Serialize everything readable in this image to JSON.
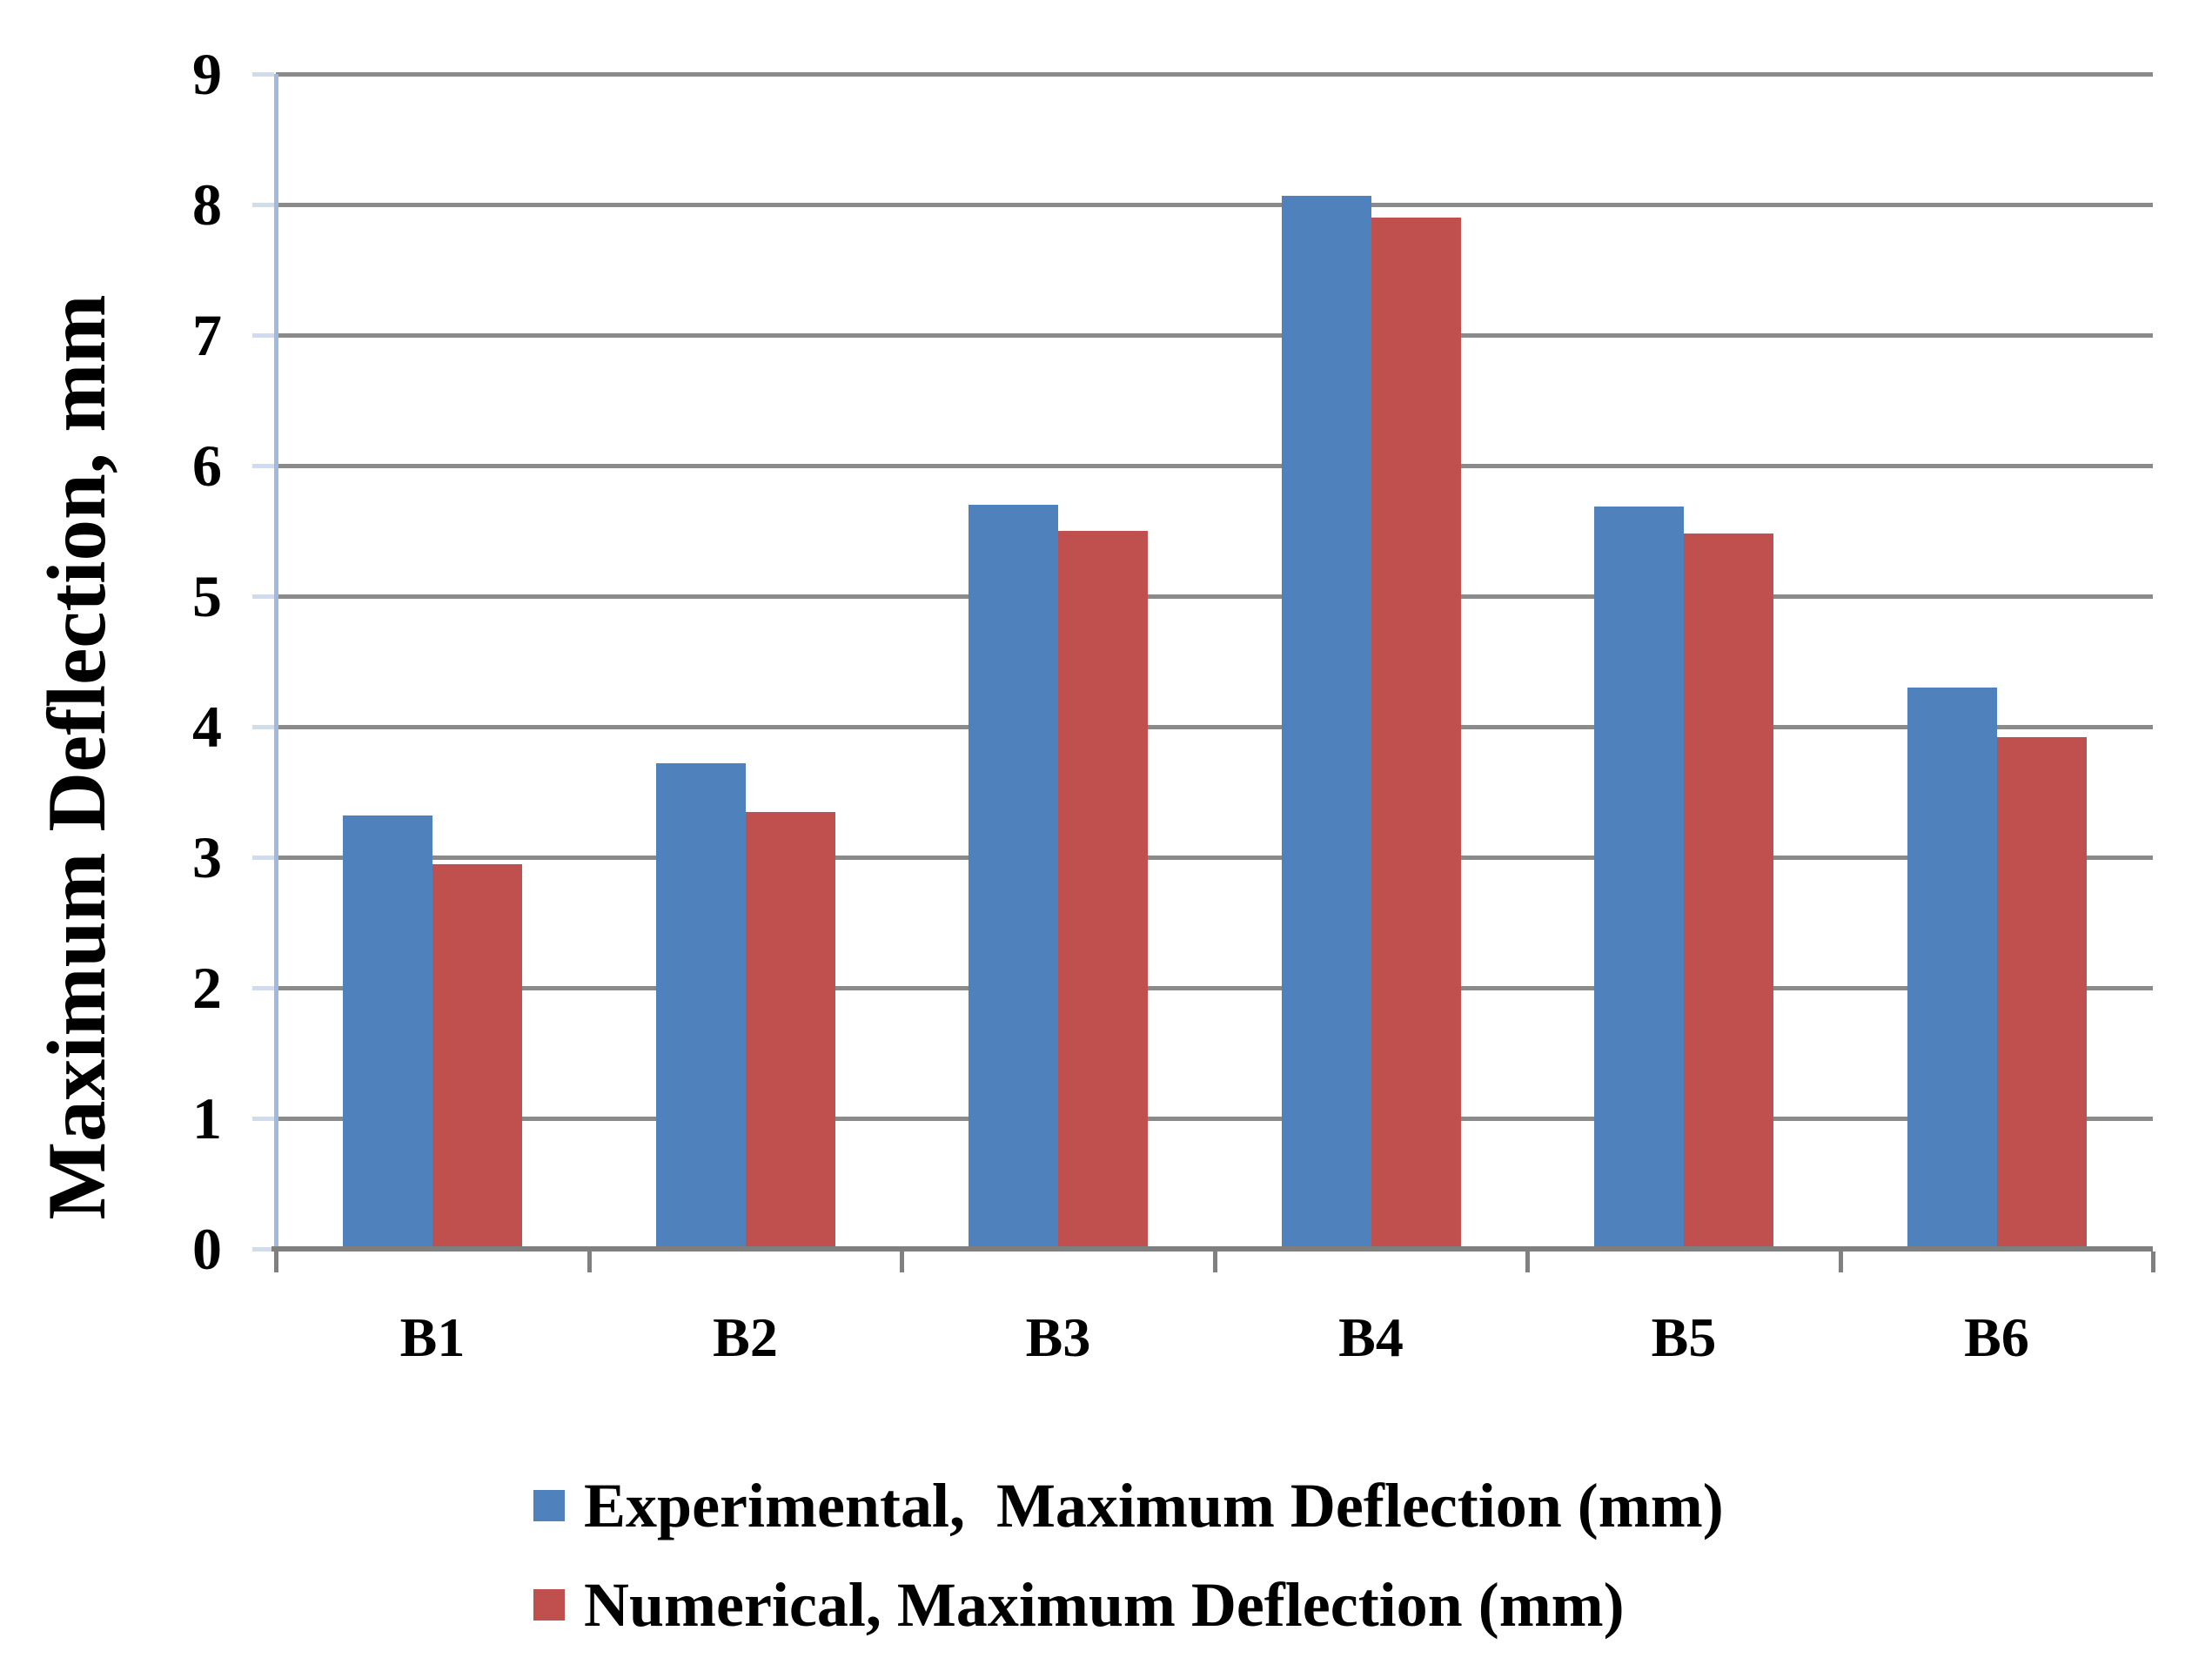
{
  "chart_data": {
    "type": "bar",
    "title": "",
    "xlabel": "",
    "ylabel": "Maximum Deflection, mm",
    "categories": [
      "B1",
      "B2",
      "B3",
      "B4",
      "B5",
      "B6"
    ],
    "series": [
      {
        "name": "Experimental,  Maximum Deflection (mm)",
        "color": "#4F81BD",
        "values": [
          3.32,
          3.72,
          5.7,
          8.07,
          5.69,
          4.3
        ]
      },
      {
        "name": "Numerical, Maximum Deflection (mm)",
        "color": "#C0504D",
        "values": [
          2.95,
          3.35,
          5.5,
          7.9,
          5.48,
          3.92
        ]
      }
    ],
    "ylim": [
      0,
      9
    ],
    "yticks": [
      0,
      1,
      2,
      3,
      4,
      5,
      6,
      7,
      8,
      9
    ],
    "grid": true,
    "legend_position": "bottom-left",
    "colors": {
      "gridline": "#8A8A8A",
      "x_axis_line": "#7F7F7F",
      "x_axis_tick": "#808080",
      "y_axis_line": "#A0B9E1",
      "y_axis_tick": "#D0DBEF",
      "text": "#000000",
      "background": "#FFFFFF"
    }
  }
}
